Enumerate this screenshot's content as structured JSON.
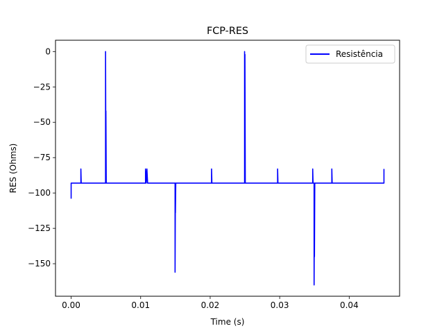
{
  "chart_data": {
    "type": "line",
    "title": "FCP-RES",
    "xlabel": "Time (s)",
    "ylabel": "RES (Ohms)",
    "xlim": [
      -0.00225,
      0.04725
    ],
    "ylim": [
      -173,
      8
    ],
    "x_ticks": [
      0.0,
      0.01,
      0.02,
      0.03,
      0.04
    ],
    "x_tick_labels": [
      "0.00",
      "0.01",
      "0.02",
      "0.03",
      "0.04"
    ],
    "y_ticks": [
      0,
      -25,
      -50,
      -75,
      -100,
      -125,
      -150
    ],
    "y_tick_labels": [
      "0",
      "−25",
      "−50",
      "−75",
      "−100",
      "−125",
      "−150"
    ],
    "grid": false,
    "legend_position": "top-right",
    "colors": {
      "series": "#0000ff"
    },
    "series": [
      {
        "name": "Resistência",
        "points": [
          [
            0.0,
            -104
          ],
          [
            0.0,
            -93
          ],
          [
            0.0014,
            -93
          ],
          [
            0.0014,
            -83
          ],
          [
            0.00145,
            -93
          ],
          [
            0.00495,
            -93
          ],
          [
            0.00495,
            0
          ],
          [
            0.005,
            -93
          ],
          [
            0.005,
            -42
          ],
          [
            0.00505,
            -93
          ],
          [
            0.0107,
            -93
          ],
          [
            0.0107,
            -83
          ],
          [
            0.0108,
            -93
          ],
          [
            0.0109,
            -83
          ],
          [
            0.011,
            -93
          ],
          [
            0.01495,
            -93
          ],
          [
            0.01495,
            -156
          ],
          [
            0.015,
            -93
          ],
          [
            0.015,
            -114
          ],
          [
            0.01505,
            -93
          ],
          [
            0.0202,
            -93
          ],
          [
            0.0202,
            -83
          ],
          [
            0.02025,
            -93
          ],
          [
            0.02495,
            -93
          ],
          [
            0.02495,
            0
          ],
          [
            0.025,
            -93
          ],
          [
            0.025,
            -2
          ],
          [
            0.02505,
            -93
          ],
          [
            0.0297,
            -93
          ],
          [
            0.0297,
            -83
          ],
          [
            0.02975,
            -93
          ],
          [
            0.03475,
            -93
          ],
          [
            0.03475,
            -83
          ],
          [
            0.0348,
            -93
          ],
          [
            0.03495,
            -93
          ],
          [
            0.03495,
            -165
          ],
          [
            0.035,
            -93
          ],
          [
            0.035,
            -145
          ],
          [
            0.03505,
            -93
          ],
          [
            0.0375,
            -93
          ],
          [
            0.0375,
            -83
          ],
          [
            0.03755,
            -93
          ],
          [
            0.045,
            -93
          ],
          [
            0.045,
            -83
          ]
        ]
      }
    ]
  }
}
